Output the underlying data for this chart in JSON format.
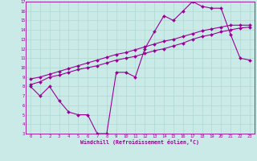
{
  "xlabel": "Windchill (Refroidissement éolien,°C)",
  "xlim": [
    -0.5,
    23.5
  ],
  "ylim": [
    3,
    17
  ],
  "background_color": "#caeae8",
  "line_color": "#990099",
  "grid_color": "#b0d8d0",
  "line1_x": [
    0,
    1,
    2,
    3,
    4,
    5,
    6,
    7,
    8,
    9,
    10,
    11,
    12,
    13,
    14,
    15,
    16,
    17,
    18,
    19,
    20,
    21,
    22,
    23
  ],
  "line1_y": [
    8.0,
    7.0,
    8.0,
    6.5,
    5.3,
    5.0,
    5.0,
    3.0,
    3.0,
    9.5,
    9.5,
    9.0,
    12.0,
    13.8,
    15.5,
    15.0,
    16.0,
    17.0,
    16.5,
    16.3,
    16.3,
    13.5,
    11.0,
    10.8
  ],
  "line2_x": [
    0,
    1,
    2,
    3,
    4,
    5,
    6,
    7,
    8,
    9,
    10,
    11,
    12,
    13,
    14,
    15,
    16,
    17,
    18,
    19,
    20,
    21,
    22,
    23
  ],
  "line2_y": [
    8.2,
    8.5,
    9.0,
    9.2,
    9.5,
    9.8,
    10.0,
    10.2,
    10.5,
    10.8,
    11.0,
    11.2,
    11.5,
    11.8,
    12.0,
    12.3,
    12.6,
    13.0,
    13.3,
    13.5,
    13.8,
    14.0,
    14.2,
    14.3
  ],
  "line3_x": [
    0,
    1,
    2,
    3,
    4,
    5,
    6,
    7,
    8,
    9,
    10,
    11,
    12,
    13,
    14,
    15,
    16,
    17,
    18,
    19,
    20,
    21,
    22,
    23
  ],
  "line3_y": [
    8.8,
    9.0,
    9.3,
    9.6,
    9.9,
    10.2,
    10.5,
    10.8,
    11.1,
    11.4,
    11.6,
    11.9,
    12.2,
    12.5,
    12.8,
    13.0,
    13.3,
    13.6,
    13.9,
    14.1,
    14.3,
    14.5,
    14.5,
    14.5
  ]
}
